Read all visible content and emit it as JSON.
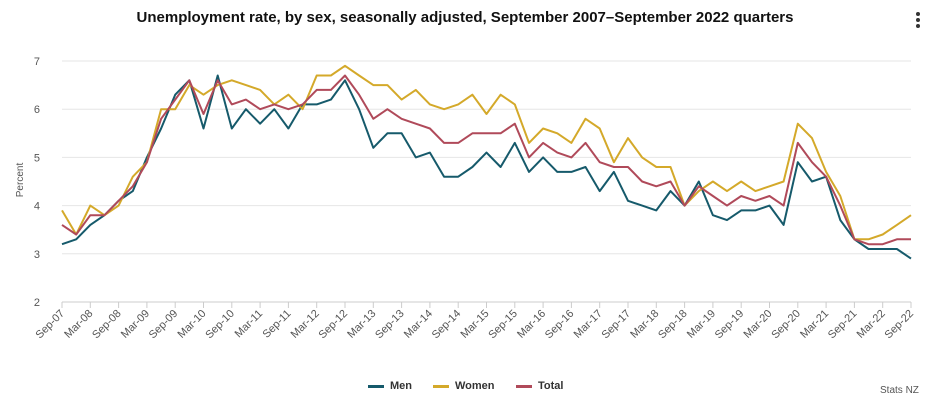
{
  "title": "Unemployment rate, by sex, seasonally adjusted, September 2007–September 2022 quarters",
  "credits": "Stats NZ",
  "menu_icon": "kebab-menu-icon",
  "chart_data": {
    "type": "line",
    "title": "Unemployment rate, by sex, seasonally adjusted, September 2007–September 2022 quarters",
    "xlabel": "",
    "ylabel": "Percent",
    "ylim": [
      2,
      7
    ],
    "yticks": [
      2,
      3,
      4,
      5,
      6,
      7
    ],
    "grid": true,
    "legend": "bottom-center",
    "x": [
      "Sep-07",
      "Dec-07",
      "Mar-08",
      "Jun-08",
      "Sep-08",
      "Dec-08",
      "Mar-09",
      "Jun-09",
      "Sep-09",
      "Dec-09",
      "Mar-10",
      "Jun-10",
      "Sep-10",
      "Dec-10",
      "Mar-11",
      "Jun-11",
      "Sep-11",
      "Dec-11",
      "Mar-12",
      "Jun-12",
      "Sep-12",
      "Dec-12",
      "Mar-13",
      "Jun-13",
      "Sep-13",
      "Dec-13",
      "Mar-14",
      "Jun-14",
      "Sep-14",
      "Dec-14",
      "Mar-15",
      "Jun-15",
      "Sep-15",
      "Dec-15",
      "Mar-16",
      "Jun-16",
      "Sep-16",
      "Dec-16",
      "Mar-17",
      "Jun-17",
      "Sep-17",
      "Dec-17",
      "Mar-18",
      "Jun-18",
      "Sep-18",
      "Dec-18",
      "Mar-19",
      "Jun-19",
      "Sep-19",
      "Dec-19",
      "Mar-20",
      "Jun-20",
      "Sep-20",
      "Dec-20",
      "Mar-21",
      "Jun-21",
      "Sep-21",
      "Dec-21",
      "Mar-22",
      "Jun-22",
      "Sep-22"
    ],
    "xtick_labels": [
      "Sep-07",
      "Mar-08",
      "Sep-08",
      "Mar-09",
      "Sep-09",
      "Mar-10",
      "Sep-10",
      "Mar-11",
      "Sep-11",
      "Mar-12",
      "Sep-12",
      "Mar-13",
      "Sep-13",
      "Mar-14",
      "Sep-14",
      "Mar-15",
      "Sep-15",
      "Mar-16",
      "Sep-16",
      "Mar-17",
      "Sep-17",
      "Mar-18",
      "Sep-18",
      "Mar-19",
      "Sep-19",
      "Mar-20",
      "Sep-20",
      "Mar-21",
      "Sep-21",
      "Mar-22",
      "Sep-22"
    ],
    "series": [
      {
        "name": "Men",
        "color": "#165a6b",
        "values": [
          3.2,
          3.3,
          3.6,
          3.8,
          4.1,
          4.3,
          5.0,
          5.6,
          6.3,
          6.6,
          5.6,
          6.7,
          5.6,
          6.0,
          5.7,
          6.0,
          5.6,
          6.1,
          6.1,
          6.2,
          6.6,
          6.0,
          5.2,
          5.5,
          5.5,
          5.0,
          5.1,
          4.6,
          4.6,
          4.8,
          5.1,
          4.8,
          5.3,
          4.7,
          5.0,
          4.7,
          4.7,
          4.8,
          4.3,
          4.7,
          4.1,
          4.0,
          3.9,
          4.3,
          4.0,
          4.5,
          3.8,
          3.7,
          3.9,
          3.9,
          4.0,
          3.6,
          4.9,
          4.5,
          4.6,
          3.7,
          3.3,
          3.1,
          3.1,
          3.1,
          2.9
        ]
      },
      {
        "name": "Women",
        "color": "#d4a92a",
        "values": [
          3.9,
          3.4,
          4.0,
          3.8,
          4.0,
          4.6,
          4.9,
          6.0,
          6.0,
          6.5,
          6.3,
          6.5,
          6.6,
          6.5,
          6.4,
          6.1,
          6.3,
          6.0,
          6.7,
          6.7,
          6.9,
          6.7,
          6.5,
          6.5,
          6.2,
          6.4,
          6.1,
          6.0,
          6.1,
          6.3,
          5.9,
          6.3,
          6.1,
          5.3,
          5.6,
          5.5,
          5.3,
          5.8,
          5.6,
          4.9,
          5.4,
          5.0,
          4.8,
          4.8,
          4.0,
          4.3,
          4.5,
          4.3,
          4.5,
          4.3,
          4.4,
          4.5,
          5.7,
          5.4,
          4.7,
          4.2,
          3.3,
          3.3,
          3.4,
          3.6,
          3.8
        ]
      },
      {
        "name": "Total",
        "color": "#b04a5a",
        "values": [
          3.6,
          3.4,
          3.8,
          3.8,
          4.1,
          4.4,
          4.9,
          5.8,
          6.2,
          6.6,
          5.9,
          6.6,
          6.1,
          6.2,
          6.0,
          6.1,
          6.0,
          6.1,
          6.4,
          6.4,
          6.7,
          6.3,
          5.8,
          6.0,
          5.8,
          5.7,
          5.6,
          5.3,
          5.3,
          5.5,
          5.5,
          5.5,
          5.7,
          5.0,
          5.3,
          5.1,
          5.0,
          5.3,
          4.9,
          4.8,
          4.8,
          4.5,
          4.4,
          4.5,
          4.0,
          4.4,
          4.2,
          4.0,
          4.2,
          4.1,
          4.2,
          4.0,
          5.3,
          4.9,
          4.6,
          4.0,
          3.3,
          3.2,
          3.2,
          3.3,
          3.3
        ]
      }
    ]
  }
}
